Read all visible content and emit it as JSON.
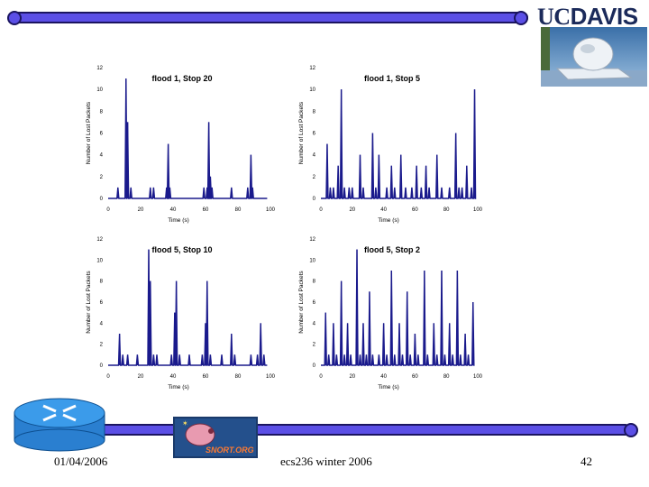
{
  "header": {
    "brand_uc": "UC",
    "brand_davis": "DAVIS"
  },
  "footer": {
    "date": "01/04/2006",
    "course": "ecs236 winter 2006",
    "page": "42"
  },
  "logo": {
    "snort_text": "SNORT.ORG"
  },
  "colors": {
    "bar_fill": "#5b4fe6",
    "bar_border": "#1b1560",
    "series": "#1a1a8c"
  },
  "chart_data": [
    {
      "type": "line",
      "title": "flood 1, Stop 20",
      "xlabel": "Time (s)",
      "ylabel": "Number of Lost Packets",
      "xlim": [
        0,
        100
      ],
      "ylim": [
        0,
        12
      ],
      "xticks": [
        "0",
        "20",
        "40",
        "60",
        "80",
        "100"
      ],
      "yticks": [
        "0",
        "2",
        "4",
        "6",
        "8",
        "10",
        "12"
      ],
      "spikes": [
        [
          6,
          1
        ],
        [
          11,
          11
        ],
        [
          12,
          7
        ],
        [
          14,
          1
        ],
        [
          26,
          1
        ],
        [
          28,
          1
        ],
        [
          36,
          1
        ],
        [
          37,
          5
        ],
        [
          38,
          1
        ],
        [
          59,
          1
        ],
        [
          61,
          1
        ],
        [
          62,
          7
        ],
        [
          63,
          2
        ],
        [
          64,
          1
        ],
        [
          76,
          1
        ],
        [
          86,
          1
        ],
        [
          88,
          4
        ],
        [
          89,
          1
        ]
      ]
    },
    {
      "type": "line",
      "title": "flood 1, Stop 5",
      "xlabel": "Time (s)",
      "ylabel": "Number of Lost Packets",
      "xlim": [
        0,
        100
      ],
      "ylim": [
        0,
        12
      ],
      "xticks": [
        "0",
        "20",
        "40",
        "60",
        "80",
        "100"
      ],
      "yticks": [
        "0",
        "2",
        "4",
        "6",
        "8",
        "10",
        "12"
      ],
      "spikes": [
        [
          4,
          5
        ],
        [
          6,
          1
        ],
        [
          8,
          1
        ],
        [
          11,
          3
        ],
        [
          13,
          10
        ],
        [
          15,
          1
        ],
        [
          18,
          1
        ],
        [
          20,
          1
        ],
        [
          25,
          4
        ],
        [
          27,
          1
        ],
        [
          33,
          6
        ],
        [
          35,
          1
        ],
        [
          37,
          4
        ],
        [
          42,
          1
        ],
        [
          45,
          3
        ],
        [
          47,
          1
        ],
        [
          51,
          4
        ],
        [
          54,
          1
        ],
        [
          58,
          1
        ],
        [
          61,
          3
        ],
        [
          64,
          1
        ],
        [
          67,
          3
        ],
        [
          69,
          1
        ],
        [
          74,
          4
        ],
        [
          77,
          1
        ],
        [
          82,
          1
        ],
        [
          86,
          6
        ],
        [
          88,
          1
        ],
        [
          90,
          1
        ],
        [
          93,
          3
        ],
        [
          96,
          1
        ],
        [
          98,
          10
        ]
      ]
    },
    {
      "type": "line",
      "title": "flood 5, Stop 10",
      "xlabel": "Time (s)",
      "ylabel": "Number of Lost Packets",
      "xlim": [
        0,
        100
      ],
      "ylim": [
        0,
        12
      ],
      "xticks": [
        "0",
        "20",
        "40",
        "60",
        "80",
        "100"
      ],
      "yticks": [
        "0",
        "2",
        "4",
        "6",
        "8",
        "10",
        "12"
      ],
      "spikes": [
        [
          7,
          3
        ],
        [
          9,
          1
        ],
        [
          12,
          1
        ],
        [
          18,
          1
        ],
        [
          25,
          11
        ],
        [
          26,
          8
        ],
        [
          28,
          1
        ],
        [
          30,
          1
        ],
        [
          39,
          1
        ],
        [
          41,
          5
        ],
        [
          42,
          8
        ],
        [
          44,
          1
        ],
        [
          50,
          1
        ],
        [
          58,
          1
        ],
        [
          60,
          4
        ],
        [
          61,
          8
        ],
        [
          63,
          1
        ],
        [
          70,
          1
        ],
        [
          76,
          3
        ],
        [
          78,
          1
        ],
        [
          88,
          1
        ],
        [
          92,
          1
        ],
        [
          94,
          4
        ],
        [
          96,
          1
        ]
      ]
    },
    {
      "type": "line",
      "title": "flood 5, Stop 2",
      "xlabel": "Time (s)",
      "ylabel": "Number of Lost Packets",
      "xlim": [
        0,
        100
      ],
      "ylim": [
        0,
        12
      ],
      "xticks": [
        "0",
        "20",
        "40",
        "60",
        "80",
        "100"
      ],
      "yticks": [
        "0",
        "2",
        "4",
        "6",
        "8",
        "10",
        "12"
      ],
      "spikes": [
        [
          3,
          5
        ],
        [
          5,
          1
        ],
        [
          8,
          4
        ],
        [
          10,
          1
        ],
        [
          13,
          8
        ],
        [
          15,
          1
        ],
        [
          17,
          4
        ],
        [
          19,
          1
        ],
        [
          23,
          11
        ],
        [
          25,
          1
        ],
        [
          27,
          4
        ],
        [
          29,
          1
        ],
        [
          31,
          7
        ],
        [
          33,
          1
        ],
        [
          37,
          1
        ],
        [
          40,
          4
        ],
        [
          42,
          1
        ],
        [
          45,
          9
        ],
        [
          47,
          1
        ],
        [
          50,
          4
        ],
        [
          52,
          1
        ],
        [
          55,
          7
        ],
        [
          57,
          1
        ],
        [
          60,
          3
        ],
        [
          62,
          1
        ],
        [
          66,
          9
        ],
        [
          68,
          1
        ],
        [
          72,
          4
        ],
        [
          74,
          1
        ],
        [
          77,
          9
        ],
        [
          79,
          1
        ],
        [
          82,
          4
        ],
        [
          84,
          1
        ],
        [
          87,
          9
        ],
        [
          89,
          1
        ],
        [
          92,
          3
        ],
        [
          94,
          1
        ],
        [
          97,
          6
        ]
      ]
    }
  ]
}
